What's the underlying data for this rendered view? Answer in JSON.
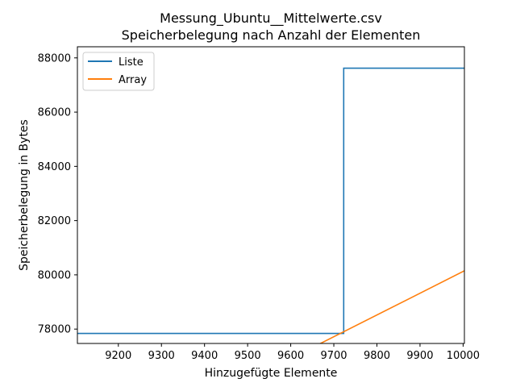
{
  "chart_data": {
    "type": "line",
    "title": "Messung_Ubuntu__Mittelwerte.csv",
    "subtitle": "Speicherbelegung nach Anzahl der Elementen",
    "xlabel": "Hinzugefügte Elemente",
    "ylabel": "Speicherbelegung in Bytes",
    "xlim": [
      9105,
      10003
    ],
    "ylim": [
      77470,
      88410
    ],
    "x_ticks": [
      9200,
      9300,
      9400,
      9500,
      9600,
      9700,
      9800,
      9900,
      10000
    ],
    "y_ticks": [
      78000,
      80000,
      82000,
      84000,
      86000,
      88000
    ],
    "grid": false,
    "legend_position": "top-left",
    "series": [
      {
        "name": "Liste",
        "color": "#1f77b4",
        "x": [
          9105,
          9723,
          9723,
          10003
        ],
        "y": [
          77840,
          77840,
          87620,
          87620
        ]
      },
      {
        "name": "Array",
        "color": "#ff7f0e",
        "x": [
          9660,
          10003
        ],
        "y": [
          77400,
          80150
        ]
      }
    ]
  }
}
